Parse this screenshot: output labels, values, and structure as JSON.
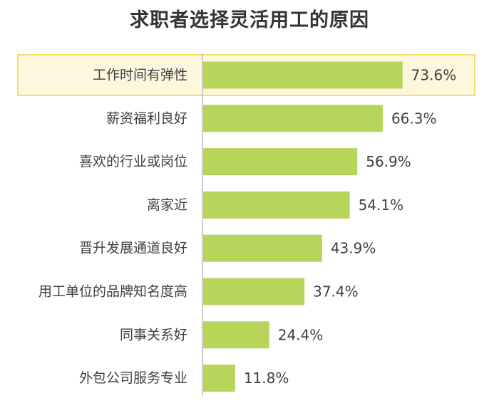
{
  "chart_data": {
    "type": "bar",
    "orientation": "horizontal",
    "title": "求职者选择灵活用工的原因",
    "categories": [
      "工作时间有弹性",
      "薪资福利良好",
      "喜欢的行业或岗位",
      "离家近",
      "晋升发展通道良好",
      "用工单位的品牌知名度高",
      "同事关系好",
      "外包公司服务专业"
    ],
    "values": [
      73.6,
      66.3,
      56.9,
      54.1,
      43.9,
      37.4,
      24.4,
      11.8
    ],
    "value_labels": [
      "73.6%",
      "66.3%",
      "56.9%",
      "54.1%",
      "43.9%",
      "37.4%",
      "24.4%",
      "11.8%"
    ],
    "unit": "%",
    "highlighted_category": "工作时间有弹性",
    "grid": false,
    "legend": "none",
    "colors": {
      "bar": "#b7d55a",
      "highlight_fill": "#fcf7dd",
      "highlight_border": "#f1e06a",
      "axis": "#bfbfbf",
      "text": "#404040"
    }
  }
}
